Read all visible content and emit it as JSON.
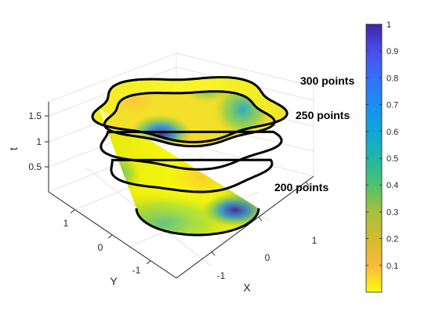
{
  "chart_data": {
    "type": "surface",
    "axes": {
      "xlabel": "X",
      "ylabel": "Y",
      "zlabel": "t",
      "xticks": [
        "-1",
        "0",
        "1"
      ],
      "yticks": [
        "-1",
        "0",
        "1"
      ],
      "zticks": [
        "0.5",
        "1",
        "1.5"
      ],
      "grid": true
    },
    "annotations": [
      {
        "label": "300 points",
        "level_t": 1.8
      },
      {
        "label": "250 points",
        "level_t": 1.3
      },
      {
        "label": "200 points",
        "level_t": 0.6
      }
    ],
    "colorbar": {
      "colormap": "parula-reversed",
      "range": [
        0,
        1
      ],
      "ticks": [
        "0.1",
        "0.2",
        "0.3",
        "0.4",
        "0.5",
        "0.6",
        "0.7",
        "0.8",
        "0.9",
        "1"
      ],
      "colors": [
        "#f9fb0e",
        "#fcba3d",
        "#d3bb2e",
        "#a7bf3e",
        "#4dc36b",
        "#1fb7a7",
        "#10a6d6",
        "#1a8ef0",
        "#3670fc",
        "#4a4dea",
        "#3e26a8"
      ]
    }
  }
}
